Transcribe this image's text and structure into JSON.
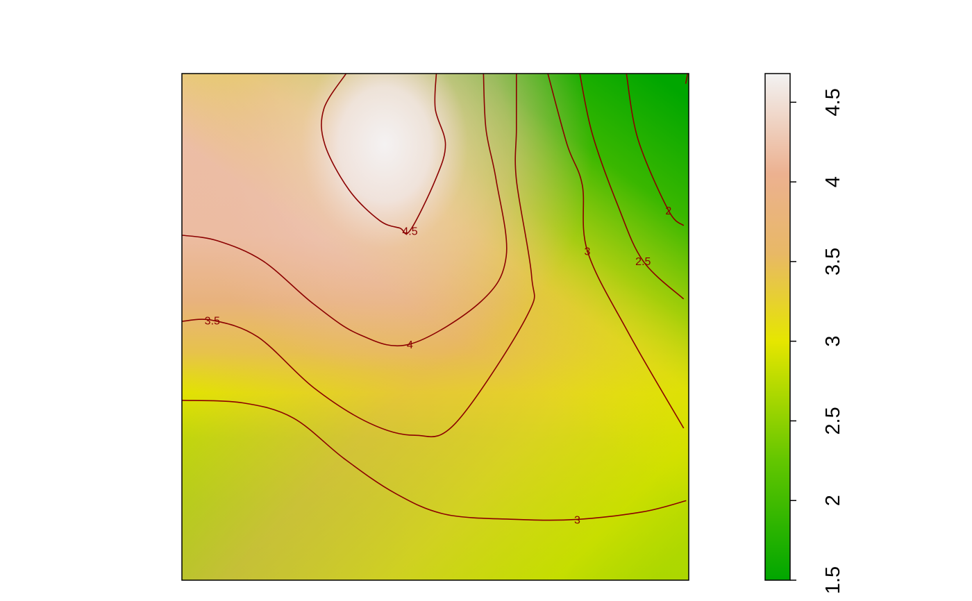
{
  "chart_data": {
    "type": "heatmap",
    "title": "",
    "xlabel": "",
    "ylabel": "",
    "axes_shown": false,
    "value_range": [
      1.5,
      4.68
    ],
    "colorscale": [
      {
        "value": 1.5,
        "color": "#00a600"
      },
      {
        "value": 2.25,
        "color": "#63c600"
      },
      {
        "value": 3.0,
        "color": "#e6e600"
      },
      {
        "value": 3.55,
        "color": "#e8b866"
      },
      {
        "value": 4.05,
        "color": "#ecb190"
      },
      {
        "value": 4.68,
        "color": "#f2f2f2"
      }
    ],
    "colorbar": {
      "position": "right",
      "ticks": [
        {
          "value": 1.5,
          "label": "1.5"
        },
        {
          "value": 2,
          "label": "2"
        },
        {
          "value": 2.5,
          "label": "2.5"
        },
        {
          "value": 3,
          "label": "3"
        },
        {
          "value": 3.5,
          "label": "3.5"
        },
        {
          "value": 4,
          "label": "4"
        },
        {
          "value": 4.5,
          "label": "4.5"
        }
      ]
    },
    "contour_color": "#8b0000",
    "contours": [
      {
        "level": 4.5,
        "label": "4.5",
        "points": [
          [
            0.324,
            1.0
          ],
          [
            0.28,
            0.93
          ],
          [
            0.282,
            0.86
          ],
          [
            0.33,
            0.77
          ],
          [
            0.39,
            0.71
          ],
          [
            0.43,
            0.695
          ],
          [
            0.45,
            0.69
          ],
          [
            0.5,
            0.79
          ],
          [
            0.52,
            0.86
          ],
          [
            0.5,
            0.93
          ],
          [
            0.502,
            1.0
          ]
        ]
      },
      {
        "level": 4,
        "label": "4",
        "points": [
          [
            0.0,
            0.681
          ],
          [
            0.07,
            0.67
          ],
          [
            0.16,
            0.63
          ],
          [
            0.26,
            0.545
          ],
          [
            0.35,
            0.485
          ],
          [
            0.45,
            0.466
          ],
          [
            0.59,
            0.55
          ],
          [
            0.64,
            0.64
          ],
          [
            0.62,
            0.79
          ],
          [
            0.6,
            0.89
          ],
          [
            0.595,
            1.0
          ]
        ]
      },
      {
        "level": 3.5,
        "label": "3.5",
        "points": [
          [
            0.0,
            0.511
          ],
          [
            0.06,
            0.513
          ],
          [
            0.15,
            0.48
          ],
          [
            0.26,
            0.38
          ],
          [
            0.37,
            0.31
          ],
          [
            0.46,
            0.286
          ],
          [
            0.54,
            0.31
          ],
          [
            0.68,
            0.52
          ],
          [
            0.69,
            0.6
          ],
          [
            0.66,
            0.79
          ],
          [
            0.66,
            0.89
          ],
          [
            0.66,
            1.0
          ]
        ]
      },
      {
        "level": 3,
        "label": "3",
        "points": [
          [
            0.0,
            0.355
          ],
          [
            0.12,
            0.35
          ],
          [
            0.22,
            0.32
          ],
          [
            0.32,
            0.24
          ],
          [
            0.42,
            0.172
          ],
          [
            0.52,
            0.13
          ],
          [
            0.66,
            0.12
          ],
          [
            0.78,
            0.12
          ],
          [
            0.91,
            0.135
          ],
          [
            0.995,
            0.157
          ]
        ]
      },
      {
        "level": 3,
        "label": "3",
        "points": [
          [
            0.722,
            1.0
          ],
          [
            0.76,
            0.86
          ],
          [
            0.79,
            0.78
          ],
          [
            0.8,
            0.65
          ],
          [
            0.88,
            0.49
          ],
          [
            0.99,
            0.3
          ]
        ]
      },
      {
        "level": 2.5,
        "label": "2.5",
        "points": [
          [
            0.785,
            1.0
          ],
          [
            0.81,
            0.88
          ],
          [
            0.86,
            0.74
          ],
          [
            0.91,
            0.63
          ],
          [
            0.99,
            0.555
          ]
        ]
      },
      {
        "level": 2,
        "label": "2",
        "points": [
          [
            0.877,
            1.0
          ],
          [
            0.9,
            0.87
          ],
          [
            0.96,
            0.73
          ],
          [
            0.99,
            0.7
          ]
        ]
      },
      {
        "level": 2,
        "label": "",
        "points": [
          [
            0.994,
            0.98
          ],
          [
            0.998,
            1.0
          ]
        ]
      }
    ]
  }
}
